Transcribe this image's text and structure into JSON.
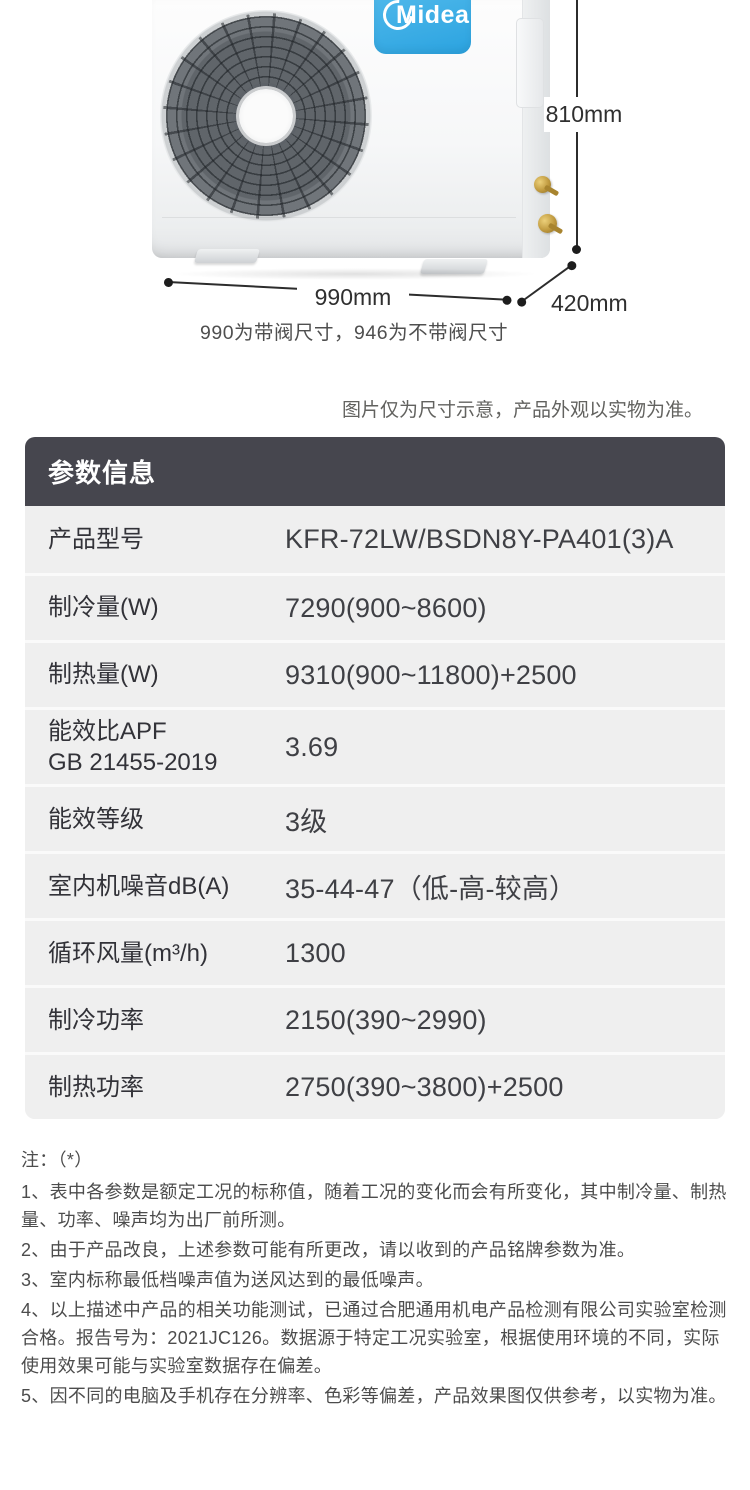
{
  "product_figure": {
    "brand": "Midea",
    "dim_height": "810mm",
    "dim_width": "990mm",
    "dim_depth": "420mm",
    "caption": "990为带阀尺寸，946为不带阀尺寸"
  },
  "disclaimer": "图片仅为尺寸示意，产品外观以实物为准。",
  "spec_table": {
    "title": "参数信息",
    "header_bg": "#46464e",
    "body_bg": "#efefef",
    "rows": [
      {
        "label": "产品型号",
        "value": "KFR-72LW/BSDN8Y-PA401(3)A"
      },
      {
        "label": "制冷量(W)",
        "value": "7290(900~8600)"
      },
      {
        "label": "制热量(W)",
        "value": "9310(900~11800)+2500"
      },
      {
        "label": "能效比APF",
        "label_line2": "GB 21455-2019",
        "value": "3.69"
      },
      {
        "label": "能效等级",
        "value": "3级"
      },
      {
        "label": "室内机噪音dB(A)",
        "value": "35-44-47（低-高-较高）"
      },
      {
        "label": "循环风量(m³/h)",
        "value": "1300"
      },
      {
        "label": "制冷功率",
        "value": "2150(390~2990)"
      },
      {
        "label": "制热功率",
        "value": "2750(390~3800)+2500"
      }
    ]
  },
  "notes": {
    "heading": "注：（*）",
    "items": [
      "1、表中各参数是额定工况的标称值，随着工况的变化而会有所变化，其中制冷量、制热量、功率、噪声均为出厂前所测。",
      "2、由于产品改良，上述参数可能有所更改，请以收到的产品铭牌参数为准。",
      "3、室内标称最低档噪声值为送风达到的最低噪声。",
      "4、以上描述中产品的相关功能测试，已通过合肥通用机电产品检测有限公司实验室检测合格。报告号为：2021JC126。数据源于特定工况实验室，根据使用环境的不同，实际使用效果可能与实验室数据存在偏差。",
      "5、因不同的电脑及手机存在分辨率、色彩等偏差，产品效果图仅供参考，以实物为准。"
    ]
  },
  "colors": {
    "brand_blue": "#3fb0e8",
    "dimension_line": "#2c2c2c"
  }
}
